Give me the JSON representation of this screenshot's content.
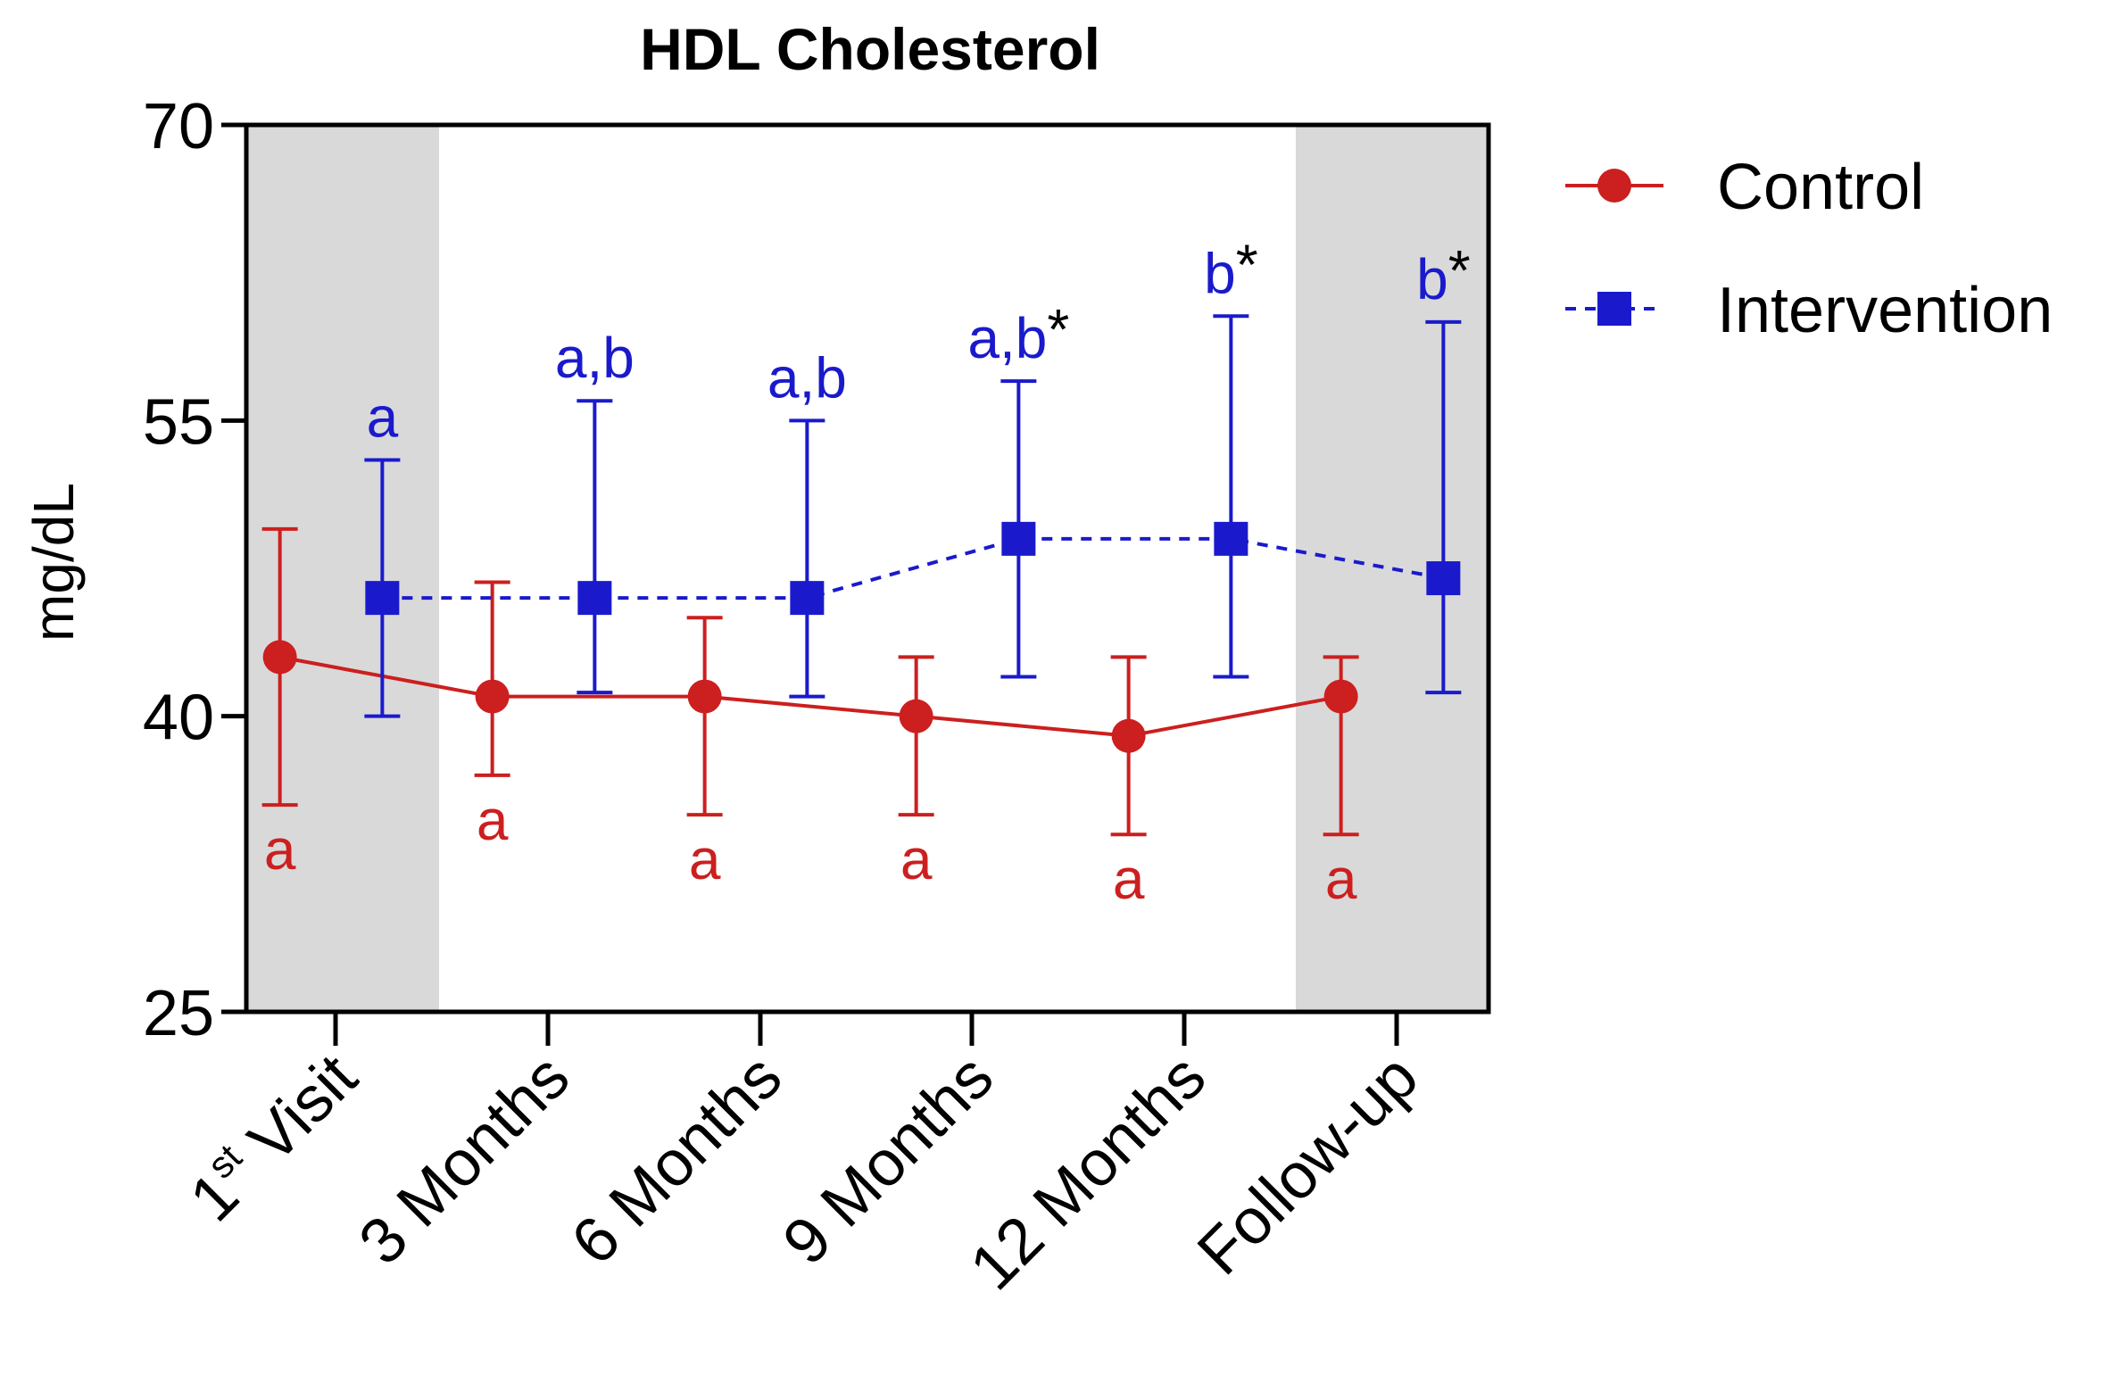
{
  "chart_data": {
    "type": "line",
    "title": "HDL Cholesterol",
    "xlabel": "",
    "ylabel": "mg/dL",
    "ylim": [
      25,
      70
    ],
    "yticks": [
      25,
      40,
      55,
      70
    ],
    "categories": [
      {
        "main": "1",
        "sup": "st",
        "rest": " Visit"
      },
      {
        "main": "3 Months",
        "sup": "",
        "rest": ""
      },
      {
        "main": "6 Months",
        "sup": "",
        "rest": ""
      },
      {
        "main": "9 Months",
        "sup": "",
        "rest": ""
      },
      {
        "main": "12 Months",
        "sup": "",
        "rest": ""
      },
      {
        "main": "Follow-up",
        "sup": "",
        "rest": ""
      }
    ],
    "shaded_categories": [
      "1st Visit",
      "Follow-up"
    ],
    "series": [
      {
        "name": "Control",
        "color": "#cc1f1f",
        "marker": "circle",
        "line": "solid",
        "values": [
          43,
          41,
          41,
          40,
          39,
          41
        ],
        "err_low": [
          35.5,
          37,
          35,
          35,
          34,
          34
        ],
        "err_high": [
          49.5,
          46.8,
          45,
          43,
          43,
          43
        ],
        "labels": [
          "a",
          "a",
          "a",
          "a",
          "a",
          "a"
        ]
      },
      {
        "name": "Intervention",
        "color": "#1a1acc",
        "marker": "square",
        "line": "dashed",
        "values": [
          46,
          46,
          46,
          49,
          49,
          47
        ],
        "err_low": [
          40,
          41.2,
          41,
          42,
          42,
          41.2
        ],
        "err_high": [
          53,
          56,
          55,
          57,
          60.3,
          60
        ],
        "labels": [
          {
            "text": "a",
            "star": ""
          },
          {
            "text": "a,b",
            "star": ""
          },
          {
            "text": "a,b",
            "star": ""
          },
          {
            "text": "a,b",
            "star": "*"
          },
          {
            "text": "b",
            "star": "*"
          },
          {
            "text": "b",
            "star": "*"
          }
        ]
      }
    ],
    "legend_position": "top-right"
  }
}
